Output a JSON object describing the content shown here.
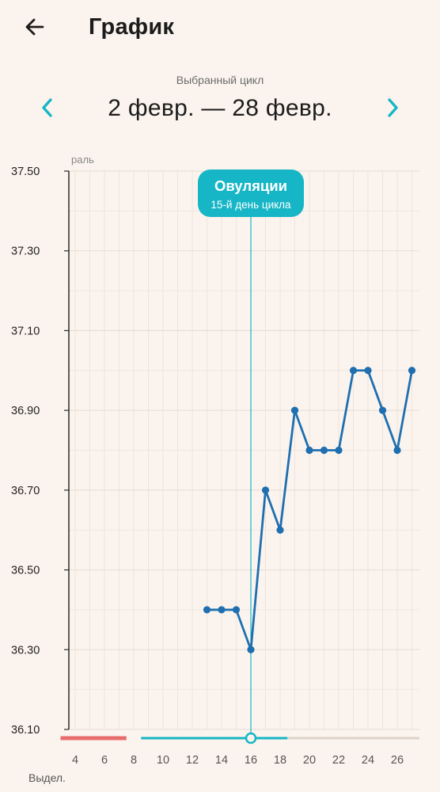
{
  "header": {
    "title": "График",
    "back_icon": "arrow-left-icon"
  },
  "cycle": {
    "caption": "Выбранный цикл",
    "range": "2 февр. — 28 февр.",
    "prev_icon": "chevron-left-icon",
    "next_icon": "chevron-right-icon"
  },
  "ovulation": {
    "title": "Овуляции",
    "subtitle": "15-й день цикла",
    "day": 16
  },
  "legend": {
    "period_label": "Выдел.",
    "axis_unit_partial": "раль"
  },
  "colors": {
    "accent": "#17b6c6",
    "line": "#1f6fb0",
    "period": "#e86b6b",
    "track": "#ddd3cb"
  },
  "chart_data": {
    "type": "line",
    "ylim": [
      36.1,
      37.5
    ],
    "yticks": [
      "37.50",
      "37.30",
      "37.10",
      "36.90",
      "36.70",
      "36.50",
      "36.30",
      "36.10"
    ],
    "xlim": [
      3,
      28
    ],
    "xticks": [
      4,
      6,
      8,
      10,
      12,
      14,
      16,
      18,
      20,
      22,
      24,
      26
    ],
    "grid": true,
    "series": [
      {
        "x": [
          13,
          14,
          15,
          16,
          17,
          18,
          19,
          20,
          21,
          22,
          23,
          24,
          25,
          26,
          27
        ],
        "values": [
          36.4,
          36.4,
          36.4,
          36.3,
          36.7,
          36.6,
          36.9,
          36.8,
          36.8,
          36.8,
          37.0,
          37.0,
          36.9,
          36.8,
          37.0
        ]
      }
    ],
    "phases": [
      {
        "kind": "period",
        "from": 3,
        "to": 7.5
      },
      {
        "kind": "fertile",
        "from": 8.5,
        "to": 18.5
      },
      {
        "kind": "rest",
        "from": 18.5,
        "to": 28
      }
    ]
  }
}
